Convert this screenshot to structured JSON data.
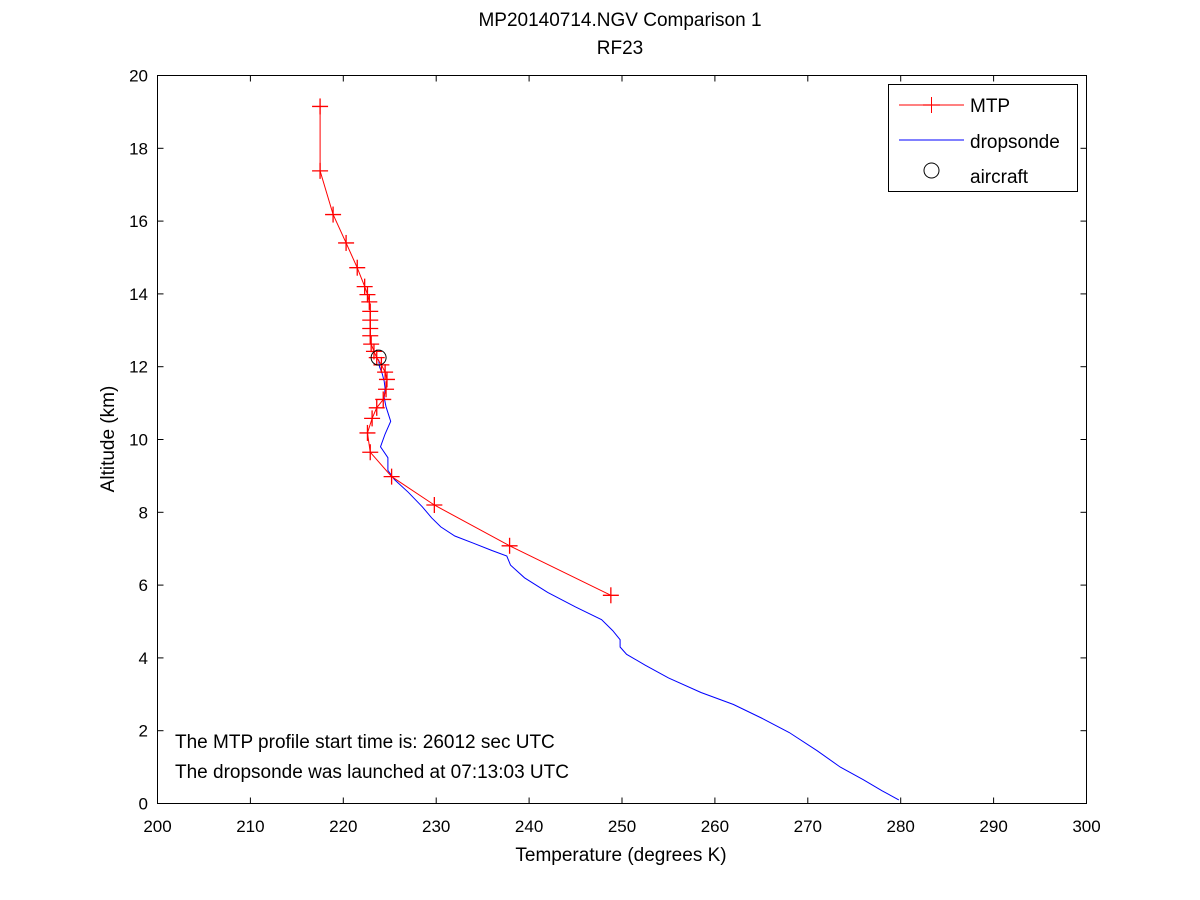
{
  "title": "MP20140714.NGV Comparison 1",
  "subtitle": "RF23",
  "annotations": [
    "The MTP profile start time is: 26012 sec UTC",
    "The dropsonde was launched at 07:13:03 UTC"
  ],
  "colors": {
    "mtp": "#ff0000",
    "dropsonde": "#0000ff",
    "aircraft": "#000000",
    "axes": "#000000"
  },
  "chart_data": {
    "type": "line",
    "title": "MP20140714.NGV Comparison 1",
    "subtitle": "RF23",
    "xlabel": "Temperature (degrees K)",
    "ylabel": "Altitude (km)",
    "xlim": [
      200,
      300
    ],
    "ylim": [
      0,
      20
    ],
    "xticks": [
      200,
      210,
      220,
      230,
      240,
      250,
      260,
      270,
      280,
      290,
      300
    ],
    "yticks": [
      0,
      2,
      4,
      6,
      8,
      10,
      12,
      14,
      16,
      18,
      20
    ],
    "grid": false,
    "legend_position": "top-right",
    "series": [
      {
        "name": "MTP",
        "marker": "+",
        "points": [
          [
            248.8,
            5.72
          ],
          [
            237.9,
            7.08
          ],
          [
            229.8,
            8.2
          ],
          [
            225.2,
            8.98
          ],
          [
            222.9,
            9.65
          ],
          [
            222.6,
            10.18
          ],
          [
            223.1,
            10.58
          ],
          [
            223.6,
            10.87
          ],
          [
            224.3,
            11.1
          ],
          [
            224.6,
            11.38
          ],
          [
            224.7,
            11.65
          ],
          [
            224.5,
            11.85
          ],
          [
            224.1,
            12.05
          ],
          [
            223.6,
            12.25
          ],
          [
            223.3,
            12.42
          ],
          [
            223.0,
            12.62
          ],
          [
            222.9,
            12.85
          ],
          [
            222.9,
            13.05
          ],
          [
            222.9,
            13.28
          ],
          [
            222.9,
            13.52
          ],
          [
            222.8,
            13.78
          ],
          [
            222.6,
            13.98
          ],
          [
            222.3,
            14.2
          ],
          [
            221.5,
            14.72
          ],
          [
            220.3,
            15.4
          ],
          [
            218.9,
            16.18
          ],
          [
            217.5,
            17.38
          ],
          [
            217.5,
            19.15
          ]
        ]
      },
      {
        "name": "dropsonde",
        "points": [
          [
            279.8,
            0.1
          ],
          [
            278.0,
            0.35
          ],
          [
            276.0,
            0.65
          ],
          [
            273.5,
            1.0
          ],
          [
            271.0,
            1.45
          ],
          [
            268.0,
            1.95
          ],
          [
            265.0,
            2.35
          ],
          [
            262.0,
            2.72
          ],
          [
            258.5,
            3.05
          ],
          [
            255.0,
            3.45
          ],
          [
            252.5,
            3.8
          ],
          [
            250.5,
            4.1
          ],
          [
            249.8,
            4.3
          ],
          [
            249.8,
            4.5
          ],
          [
            249.0,
            4.75
          ],
          [
            247.8,
            5.05
          ],
          [
            245.0,
            5.4
          ],
          [
            242.0,
            5.8
          ],
          [
            239.5,
            6.2
          ],
          [
            238.0,
            6.55
          ],
          [
            237.6,
            6.8
          ],
          [
            236.0,
            6.95
          ],
          [
            234.0,
            7.15
          ],
          [
            232.0,
            7.35
          ],
          [
            230.5,
            7.6
          ],
          [
            229.5,
            7.85
          ],
          [
            228.5,
            8.15
          ],
          [
            227.0,
            8.55
          ],
          [
            225.5,
            8.9
          ],
          [
            224.8,
            9.15
          ],
          [
            224.8,
            9.5
          ],
          [
            224.0,
            9.8
          ],
          [
            224.5,
            10.15
          ],
          [
            225.1,
            10.5
          ],
          [
            224.6,
            10.9
          ],
          [
            224.4,
            11.15
          ],
          [
            224.5,
            11.4
          ],
          [
            224.4,
            11.6
          ],
          [
            224.2,
            11.8
          ],
          [
            223.9,
            12.0
          ],
          [
            223.8,
            12.2
          ]
        ]
      },
      {
        "name": "aircraft",
        "marker": "o",
        "points": [
          [
            223.8,
            12.25
          ]
        ]
      }
    ]
  }
}
